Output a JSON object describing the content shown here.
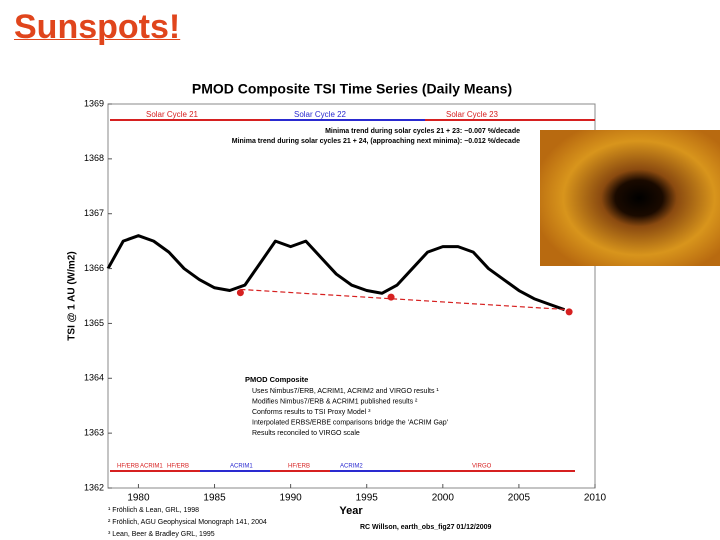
{
  "slide_title": "Sunspots!",
  "chart_data": {
    "type": "line",
    "title": "PMOD Composite TSI Time Series (Daily Means)",
    "x_label": "Year",
    "y_label": "TSI @ 1 AU (W/m2)",
    "xlim": [
      1978,
      2010
    ],
    "xticks": [
      1980,
      1985,
      1990,
      1995,
      2000,
      2005,
      2010
    ],
    "ylim": [
      1362,
      1369
    ],
    "yticks": [
      1362,
      1363,
      1364,
      1365,
      1366,
      1367,
      1368,
      1369
    ],
    "series": [
      {
        "color": "#000000",
        "style": "solid",
        "x": [
          1978,
          1979,
          1980,
          1981,
          1982,
          1983,
          1984,
          1985,
          1986,
          1987,
          1988,
          1989,
          1990,
          1991,
          1992,
          1993,
          1994,
          1995,
          1996,
          1997,
          1998,
          1999,
          2000,
          2001,
          2002,
          2003,
          2004,
          2005,
          2006,
          2007,
          2008
        ],
        "values": [
          1366.0,
          1366.5,
          1366.6,
          1366.5,
          1366.3,
          1366.0,
          1365.8,
          1365.65,
          1365.6,
          1365.7,
          1366.1,
          1366.5,
          1366.4,
          1366.5,
          1366.2,
          1365.9,
          1365.7,
          1365.6,
          1365.55,
          1365.7,
          1366.0,
          1366.3,
          1366.4,
          1366.4,
          1366.3,
          1366.0,
          1365.8,
          1365.6,
          1365.45,
          1365.35,
          1365.25
        ]
      },
      {
        "color": "#d62020",
        "style": "dash",
        "x": [
          1986.7,
          2008.3
        ],
        "values": [
          1365.62,
          1365.25
        ]
      },
      {
        "color": "#d62020",
        "style": "marker",
        "x": [
          1986.7,
          1996.6,
          2008.3
        ],
        "values": [
          1365.56,
          1365.48,
          1365.21
        ]
      }
    ],
    "cycles": [
      "Solar Cycle 21",
      "Solar Cycle 22",
      "Solar Cycle 23"
    ],
    "annotations": [
      "Minima trend during solar cycles 21 + 23: −0.007 %/decade",
      "Minima trend  during solar cycles 21 + 24, (approaching next minima): −0.012 %/decade"
    ],
    "instruments": [
      "HF/ERB",
      "ACRIM1",
      "HF/ERB",
      "ACRIM1",
      "HF/ERB",
      "ACRIM2",
      "VIRGO"
    ],
    "legend_title": "PMOD Composite",
    "legend_lines": [
      "Uses Nimbus7/ERB,  ACRIM1, ACRIM2 and VIRGO results ¹",
      "Modifies Nimbus7/ERB &  ACRIM1 published results ²",
      "Conforms results to TSI Proxy Model ³",
      "Interpolated ERBS/ERBE comparisons bridge the 'ACRIM Gap'",
      "Results reconciled to VIRGO scale"
    ],
    "footnotes": [
      "¹ Fröhlich & Lean, GRL, 1998",
      "² Fröhlich, AGU Geophysical Monograph 141, 2004",
      "³ Lean, Beer & Bradley GRL, 1995"
    ],
    "credit": "RC Willson, earth_obs_fig27  01/12/2009"
  }
}
